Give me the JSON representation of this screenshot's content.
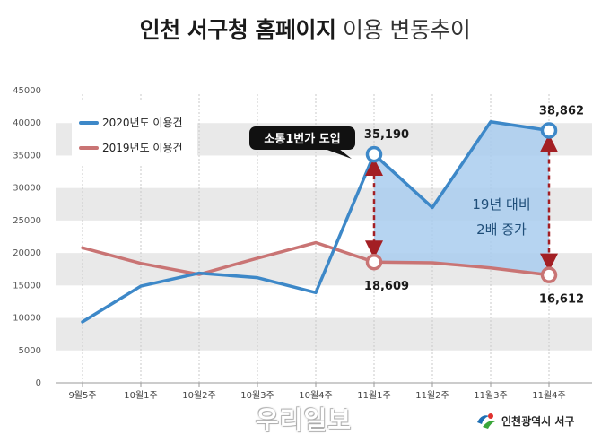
{
  "title": {
    "bold": "인천 서구청 홈페이지",
    "light": "이용 변동추이"
  },
  "chart_data": {
    "type": "line",
    "categories": [
      "9월5주",
      "10월1주",
      "10월2주",
      "10월3주",
      "10월4주",
      "11월1주",
      "11월2주",
      "11월3주",
      "11월4주"
    ],
    "series": [
      {
        "name": "2020년도 이용건",
        "color": "#3d88c8",
        "values": [
          9400,
          14900,
          16900,
          16200,
          13900,
          35190,
          27000,
          40200,
          38862
        ]
      },
      {
        "name": "2019년도 이용건",
        "color": "#c97474",
        "values": [
          20800,
          18400,
          16700,
          19200,
          21600,
          18609,
          18500,
          17700,
          16612
        ]
      }
    ],
    "ylim": [
      0,
      45000
    ],
    "yticks": [
      "0",
      "5000",
      "10000",
      "15000",
      "20000",
      "25000",
      "30000",
      "35000",
      "40000",
      "45000"
    ],
    "grid": "horizontal bands",
    "legend_position": "top-left",
    "point_labels": [
      {
        "series": 0,
        "index": 5,
        "text": "35,190"
      },
      {
        "series": 0,
        "index": 8,
        "text": "38,862"
      },
      {
        "series": 1,
        "index": 5,
        "text": "18,609"
      },
      {
        "series": 1,
        "index": 8,
        "text": "16,612"
      }
    ],
    "callout": {
      "text": "소통1번가 도입",
      "index": 5
    },
    "annotation": {
      "line1": "19년 대비",
      "line2": "2배 증가"
    }
  },
  "brand": {
    "name": "인천광역시 서구"
  },
  "watermark": "우리일보",
  "colors": {
    "band": "#e9e9e9",
    "area_fill": "#a9cdee",
    "arrow": "#a31f24",
    "callout_bg": "#111111"
  }
}
